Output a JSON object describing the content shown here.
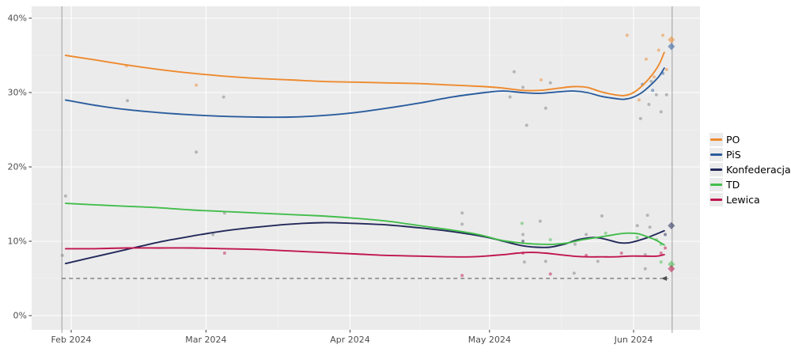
{
  "chart_data": {
    "type": "line",
    "xlabel": "",
    "ylabel": "",
    "x_unit_days_from": "Feb 2024 tick = day 0",
    "x_ticks": [
      {
        "d": 0,
        "label": "Feb 2024"
      },
      {
        "d": 29,
        "label": "Mar 2024"
      },
      {
        "d": 60,
        "label": "Apr 2024"
      },
      {
        "d": 90,
        "label": "May 2024"
      },
      {
        "d": 121,
        "label": "Jun 2024"
      }
    ],
    "y_ticks": [
      {
        "v": 0,
        "label": "0%"
      },
      {
        "v": 10,
        "label": "10%"
      },
      {
        "v": 20,
        "label": "20%"
      },
      {
        "v": 30,
        "label": "30%"
      },
      {
        "v": 40,
        "label": "40%"
      }
    ],
    "ylim": [
      0,
      40
    ],
    "grid": "major-white-on-gray",
    "legend_position": "right",
    "threshold": {
      "value": 5,
      "style": "dashed"
    },
    "vlines_d": [
      -2,
      129.3
    ],
    "series": [
      {
        "name": "PO",
        "color": "#ee8a2e",
        "points": [
          [
            -1.2,
            35.0
          ],
          [
            5,
            34.4
          ],
          [
            12,
            33.7
          ],
          [
            19,
            33.1
          ],
          [
            26,
            32.6
          ],
          [
            33,
            32.2
          ],
          [
            40,
            31.9
          ],
          [
            47,
            31.7
          ],
          [
            54,
            31.5
          ],
          [
            61,
            31.4
          ],
          [
            68,
            31.3
          ],
          [
            75,
            31.2
          ],
          [
            82,
            31.0
          ],
          [
            89,
            30.8
          ],
          [
            93,
            30.6
          ],
          [
            97,
            30.3
          ],
          [
            101,
            30.3
          ],
          [
            105,
            30.6
          ],
          [
            108,
            30.8
          ],
          [
            111,
            30.7
          ],
          [
            114,
            30.1
          ],
          [
            117,
            29.7
          ],
          [
            119,
            29.6
          ],
          [
            121,
            30.0
          ],
          [
            123,
            31.0
          ],
          [
            125,
            32.4
          ],
          [
            126.5,
            33.8
          ],
          [
            127.6,
            35.4
          ]
        ]
      },
      {
        "name": "PiS",
        "color": "#2b5d9e",
        "points": [
          [
            -1.2,
            29.0
          ],
          [
            5,
            28.3
          ],
          [
            12,
            27.7
          ],
          [
            19,
            27.3
          ],
          [
            26,
            27.0
          ],
          [
            33,
            26.8
          ],
          [
            40,
            26.7
          ],
          [
            47,
            26.7
          ],
          [
            54,
            26.9
          ],
          [
            61,
            27.3
          ],
          [
            68,
            27.9
          ],
          [
            75,
            28.6
          ],
          [
            82,
            29.4
          ],
          [
            89,
            30.0
          ],
          [
            93,
            30.2
          ],
          [
            97,
            30.0
          ],
          [
            101,
            29.9
          ],
          [
            105,
            30.1
          ],
          [
            108,
            30.2
          ],
          [
            111,
            30.0
          ],
          [
            114,
            29.5
          ],
          [
            117,
            29.2
          ],
          [
            119,
            29.1
          ],
          [
            121,
            29.4
          ],
          [
            123,
            30.1
          ],
          [
            125,
            31.2
          ],
          [
            126.5,
            32.2
          ],
          [
            127.6,
            33.3
          ]
        ]
      },
      {
        "name": "Konfederacja",
        "color": "#23295a",
        "points": [
          [
            -1.2,
            7.0
          ],
          [
            5,
            7.9
          ],
          [
            12,
            8.9
          ],
          [
            19,
            9.9
          ],
          [
            26,
            10.7
          ],
          [
            33,
            11.4
          ],
          [
            40,
            11.9
          ],
          [
            47,
            12.3
          ],
          [
            54,
            12.5
          ],
          [
            61,
            12.4
          ],
          [
            68,
            12.2
          ],
          [
            75,
            11.8
          ],
          [
            82,
            11.3
          ],
          [
            89,
            10.6
          ],
          [
            93,
            10.0
          ],
          [
            97,
            9.4
          ],
          [
            100,
            9.2
          ],
          [
            103,
            9.2
          ],
          [
            106,
            9.6
          ],
          [
            109,
            10.2
          ],
          [
            112,
            10.5
          ],
          [
            114,
            10.4
          ],
          [
            116,
            10.1
          ],
          [
            118,
            9.8
          ],
          [
            120,
            9.8
          ],
          [
            122,
            10.1
          ],
          [
            124,
            10.5
          ],
          [
            126,
            11.0
          ],
          [
            127.6,
            11.4
          ]
        ]
      },
      {
        "name": "TD",
        "color": "#43bd4c",
        "points": [
          [
            -1.2,
            15.1
          ],
          [
            5,
            14.9
          ],
          [
            12,
            14.7
          ],
          [
            19,
            14.5
          ],
          [
            26,
            14.2
          ],
          [
            33,
            14.0
          ],
          [
            40,
            13.8
          ],
          [
            47,
            13.6
          ],
          [
            54,
            13.4
          ],
          [
            61,
            13.1
          ],
          [
            68,
            12.7
          ],
          [
            75,
            12.1
          ],
          [
            82,
            11.5
          ],
          [
            86,
            11.1
          ],
          [
            89,
            10.7
          ],
          [
            92,
            10.2
          ],
          [
            95,
            9.9
          ],
          [
            98,
            9.7
          ],
          [
            101,
            9.6
          ],
          [
            104,
            9.6
          ],
          [
            107,
            9.8
          ],
          [
            110,
            10.2
          ],
          [
            113,
            10.5
          ],
          [
            116,
            10.8
          ],
          [
            118,
            11.0
          ],
          [
            120,
            11.1
          ],
          [
            122,
            11.0
          ],
          [
            124,
            10.6
          ],
          [
            126,
            10.1
          ],
          [
            127.6,
            9.5
          ]
        ]
      },
      {
        "name": "Lewica",
        "color": "#c0164f",
        "points": [
          [
            -1.2,
            9.0
          ],
          [
            5,
            9.0
          ],
          [
            12,
            9.1
          ],
          [
            19,
            9.1
          ],
          [
            26,
            9.1
          ],
          [
            33,
            9.0
          ],
          [
            40,
            8.9
          ],
          [
            47,
            8.7
          ],
          [
            54,
            8.5
          ],
          [
            61,
            8.3
          ],
          [
            68,
            8.1
          ],
          [
            75,
            8.0
          ],
          [
            82,
            7.9
          ],
          [
            86,
            7.9
          ],
          [
            89,
            8.0
          ],
          [
            93,
            8.2
          ],
          [
            96,
            8.4
          ],
          [
            99,
            8.5
          ],
          [
            102,
            8.4
          ],
          [
            105,
            8.2
          ],
          [
            108,
            8.0
          ],
          [
            111,
            7.9
          ],
          [
            114,
            7.9
          ],
          [
            117,
            7.9
          ],
          [
            120,
            8.0
          ],
          [
            123,
            8.0
          ],
          [
            126,
            8.0
          ],
          [
            127.6,
            8.2
          ]
        ]
      }
    ],
    "scatter": [
      [
        -1.2,
        16.1,
        "other"
      ],
      [
        -1.9,
        8.1,
        "other"
      ],
      [
        12.1,
        28.9,
        "other"
      ],
      [
        26.9,
        22.0,
        "other"
      ],
      [
        32.8,
        29.4,
        "other"
      ],
      [
        33.0,
        13.8,
        "other"
      ],
      [
        30.5,
        10.9,
        "other"
      ],
      [
        84.1,
        13.8,
        "other"
      ],
      [
        84.1,
        12.3,
        "other"
      ],
      [
        95.3,
        32.8,
        "other"
      ],
      [
        97.2,
        30.7,
        "other"
      ],
      [
        94.4,
        29.4,
        "other"
      ],
      [
        102.1,
        27.9,
        "other"
      ],
      [
        103.1,
        31.3,
        "other"
      ],
      [
        98.0,
        25.6,
        "other"
      ],
      [
        97.2,
        10.9,
        "other"
      ],
      [
        97.5,
        7.2,
        "other"
      ],
      [
        100.9,
        12.7,
        "other"
      ],
      [
        102.1,
        7.3,
        "other"
      ],
      [
        108.4,
        9.6,
        "other"
      ],
      [
        114.2,
        13.4,
        "other"
      ],
      [
        110.8,
        10.9,
        "other"
      ],
      [
        113.3,
        7.3,
        "other"
      ],
      [
        121.8,
        12.1,
        "other"
      ],
      [
        123.5,
        8.2,
        "other"
      ],
      [
        123.5,
        6.3,
        "other"
      ],
      [
        124.0,
        13.5,
        "other"
      ],
      [
        124.5,
        11.9,
        "other"
      ],
      [
        125.9,
        29.7,
        "other"
      ],
      [
        128.1,
        29.7,
        "other"
      ],
      [
        124.3,
        28.4,
        "other"
      ],
      [
        126.9,
        27.4,
        "other"
      ],
      [
        124.8,
        31.5,
        "other"
      ],
      [
        122.5,
        26.5,
        "other"
      ],
      [
        108.2,
        5.7,
        "other"
      ],
      [
        11.9,
        33.6,
        "PO"
      ],
      [
        26.9,
        31.0,
        "PO"
      ],
      [
        101.1,
        31.7,
        "PO"
      ],
      [
        119.6,
        37.7,
        "PO"
      ],
      [
        123.7,
        34.5,
        "PO"
      ],
      [
        125.4,
        32.1,
        "PO"
      ],
      [
        127.3,
        37.7,
        "PO"
      ],
      [
        128.1,
        33.1,
        "PO"
      ],
      [
        126.4,
        35.7,
        "PO"
      ],
      [
        122.2,
        29.0,
        "PO"
      ],
      [
        122.9,
        31.1,
        "PiS"
      ],
      [
        125.1,
        30.3,
        "PiS"
      ],
      [
        127.3,
        32.6,
        "PiS"
      ],
      [
        97.0,
        12.4,
        "TD"
      ],
      [
        103.1,
        10.2,
        "TD"
      ],
      [
        115.0,
        11.1,
        "TD"
      ],
      [
        121.8,
        10.5,
        "TD"
      ],
      [
        125.9,
        10.2,
        "TD"
      ],
      [
        126.9,
        9.6,
        "TD"
      ],
      [
        126.9,
        7.2,
        "TD"
      ],
      [
        97.2,
        10.0,
        "Konfederacja"
      ],
      [
        127.8,
        10.9,
        "Konfederacja"
      ],
      [
        33.0,
        8.4,
        "Lewica"
      ],
      [
        84.1,
        5.4,
        "Lewica"
      ],
      [
        97.2,
        8.4,
        "Lewica"
      ],
      [
        103.1,
        5.6,
        "Lewica"
      ],
      [
        110.8,
        8.1,
        "Lewica"
      ],
      [
        118.4,
        8.4,
        "Lewica"
      ],
      [
        127.8,
        9.1,
        "Lewica"
      ],
      [
        126.9,
        8.4,
        "Lewica"
      ]
    ],
    "result_markers": {
      "d": 129.3,
      "shape": "diamond",
      "values": [
        {
          "party": "PO",
          "value": 37.1
        },
        {
          "party": "PiS",
          "value": 36.2
        },
        {
          "party": "Konfederacja",
          "value": 12.1
        },
        {
          "party": "TD",
          "value": 6.9
        },
        {
          "party": "Lewica",
          "value": 6.3
        }
      ]
    },
    "colors": {
      "panel_bg": "#ebebeb",
      "grid_major": "#ffffff",
      "axis_text": "#4d4d4d",
      "tick_mark": "#333333",
      "vline": "#9e9e9e",
      "threshold_line": "#4d4d4d",
      "other_point": "#888888"
    }
  },
  "legend": {
    "entries": [
      "PO",
      "PiS",
      "Konfederacja",
      "TD",
      "Lewica"
    ]
  }
}
